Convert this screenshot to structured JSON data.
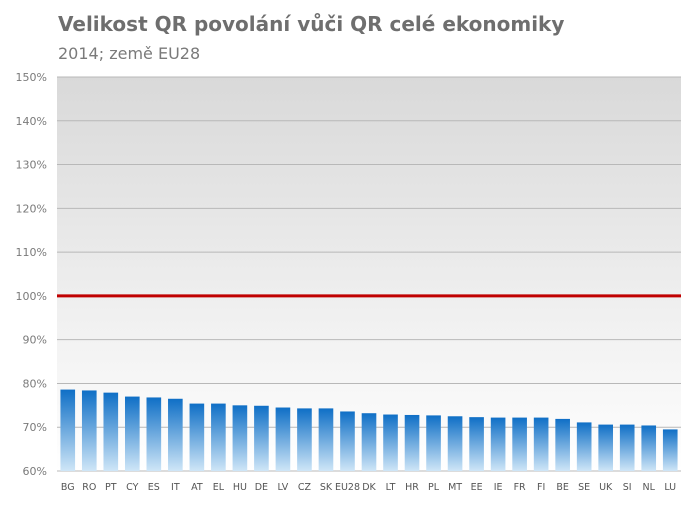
{
  "chart_data": {
    "type": "bar",
    "title": "Velikost QR povolání vůči QR celé ekonomiky",
    "subtitle": "2014; země EU28",
    "categories": [
      "BG",
      "RO",
      "PT",
      "CY",
      "ES",
      "IT",
      "AT",
      "EL",
      "HU",
      "DE",
      "LV",
      "CZ",
      "SK",
      "EU28",
      "DK",
      "LT",
      "HR",
      "PL",
      "MT",
      "EE",
      "IE",
      "FR",
      "FI",
      "BE",
      "SE",
      "UK",
      "SI",
      "NL",
      "LU"
    ],
    "values": [
      78.6,
      78.4,
      77.9,
      77.0,
      76.8,
      76.5,
      75.4,
      75.4,
      75.0,
      74.9,
      74.5,
      74.3,
      74.3,
      73.6,
      73.2,
      72.9,
      72.8,
      72.7,
      72.5,
      72.3,
      72.2,
      72.2,
      72.2,
      71.9,
      71.1,
      70.6,
      70.6,
      70.4,
      69.5
    ],
    "ylim": [
      60,
      150
    ],
    "yticks": [
      "60%",
      "70%",
      "80%",
      "90%",
      "100%",
      "110%",
      "120%",
      "130%",
      "140%",
      "150%"
    ],
    "reference_line": 100,
    "grid": true,
    "colors": {
      "bar_top": "#0f6fc6",
      "bar_bottom": "#cfe6f7",
      "reference_line": "#c00000",
      "plot_bg_top": "#d9d9d9",
      "plot_bg_bottom": "#ffffff"
    }
  }
}
